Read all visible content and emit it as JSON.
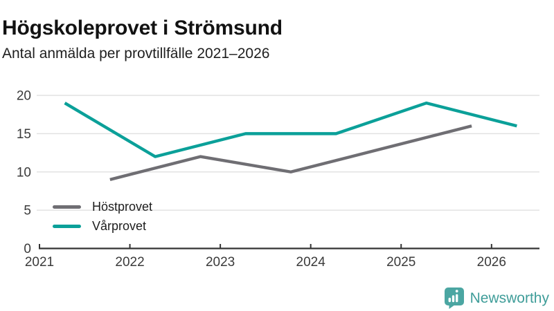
{
  "header": {
    "title": "Högskoleprovet i Strömsund",
    "subtitle": "Antal anmälda per provtillfälle 2021–2026"
  },
  "chart_data": {
    "type": "line",
    "title": "Högskoleprovet i Strömsund",
    "subtitle": "Antal anmälda per provtillfälle 2021–2026",
    "xlabel": "",
    "ylabel": "",
    "xlim": [
      2021,
      2026.53
    ],
    "ylim": [
      0,
      20
    ],
    "x_ticks": [
      "2021",
      "2022",
      "2023",
      "2024",
      "2025",
      "2026"
    ],
    "y_ticks": [
      0,
      5,
      10,
      15,
      20
    ],
    "grid": "horizontal-only",
    "legend_position": "inside-bottom-left",
    "series": [
      {
        "name": "Höstprovet",
        "id": "hostprovet",
        "color": "#6F6E73",
        "season_x_offset": 0.78,
        "years": [
          2021,
          2022,
          2023,
          2024,
          2025
        ],
        "values": [
          9,
          12,
          10,
          13,
          16
        ]
      },
      {
        "name": "Vårprovet",
        "id": "varprovet",
        "color": "#0BA099",
        "season_x_offset": 0.28,
        "years": [
          2021,
          2022,
          2023,
          2024,
          2025,
          2026
        ],
        "values": [
          19,
          12,
          15,
          15,
          19,
          16
        ]
      }
    ],
    "style": {
      "grid_color": "#e2e2e2",
      "axis_color": "#333333",
      "tick_label_color": "#3a3a3a",
      "line_width": 4.4
    }
  },
  "footer": {
    "brand_name": "Newsworthy",
    "brand_text_color": "#3F9D99",
    "brand_icon_color": "#4BA6A2",
    "brand_icon": "bar-chart-speech-bubble"
  }
}
